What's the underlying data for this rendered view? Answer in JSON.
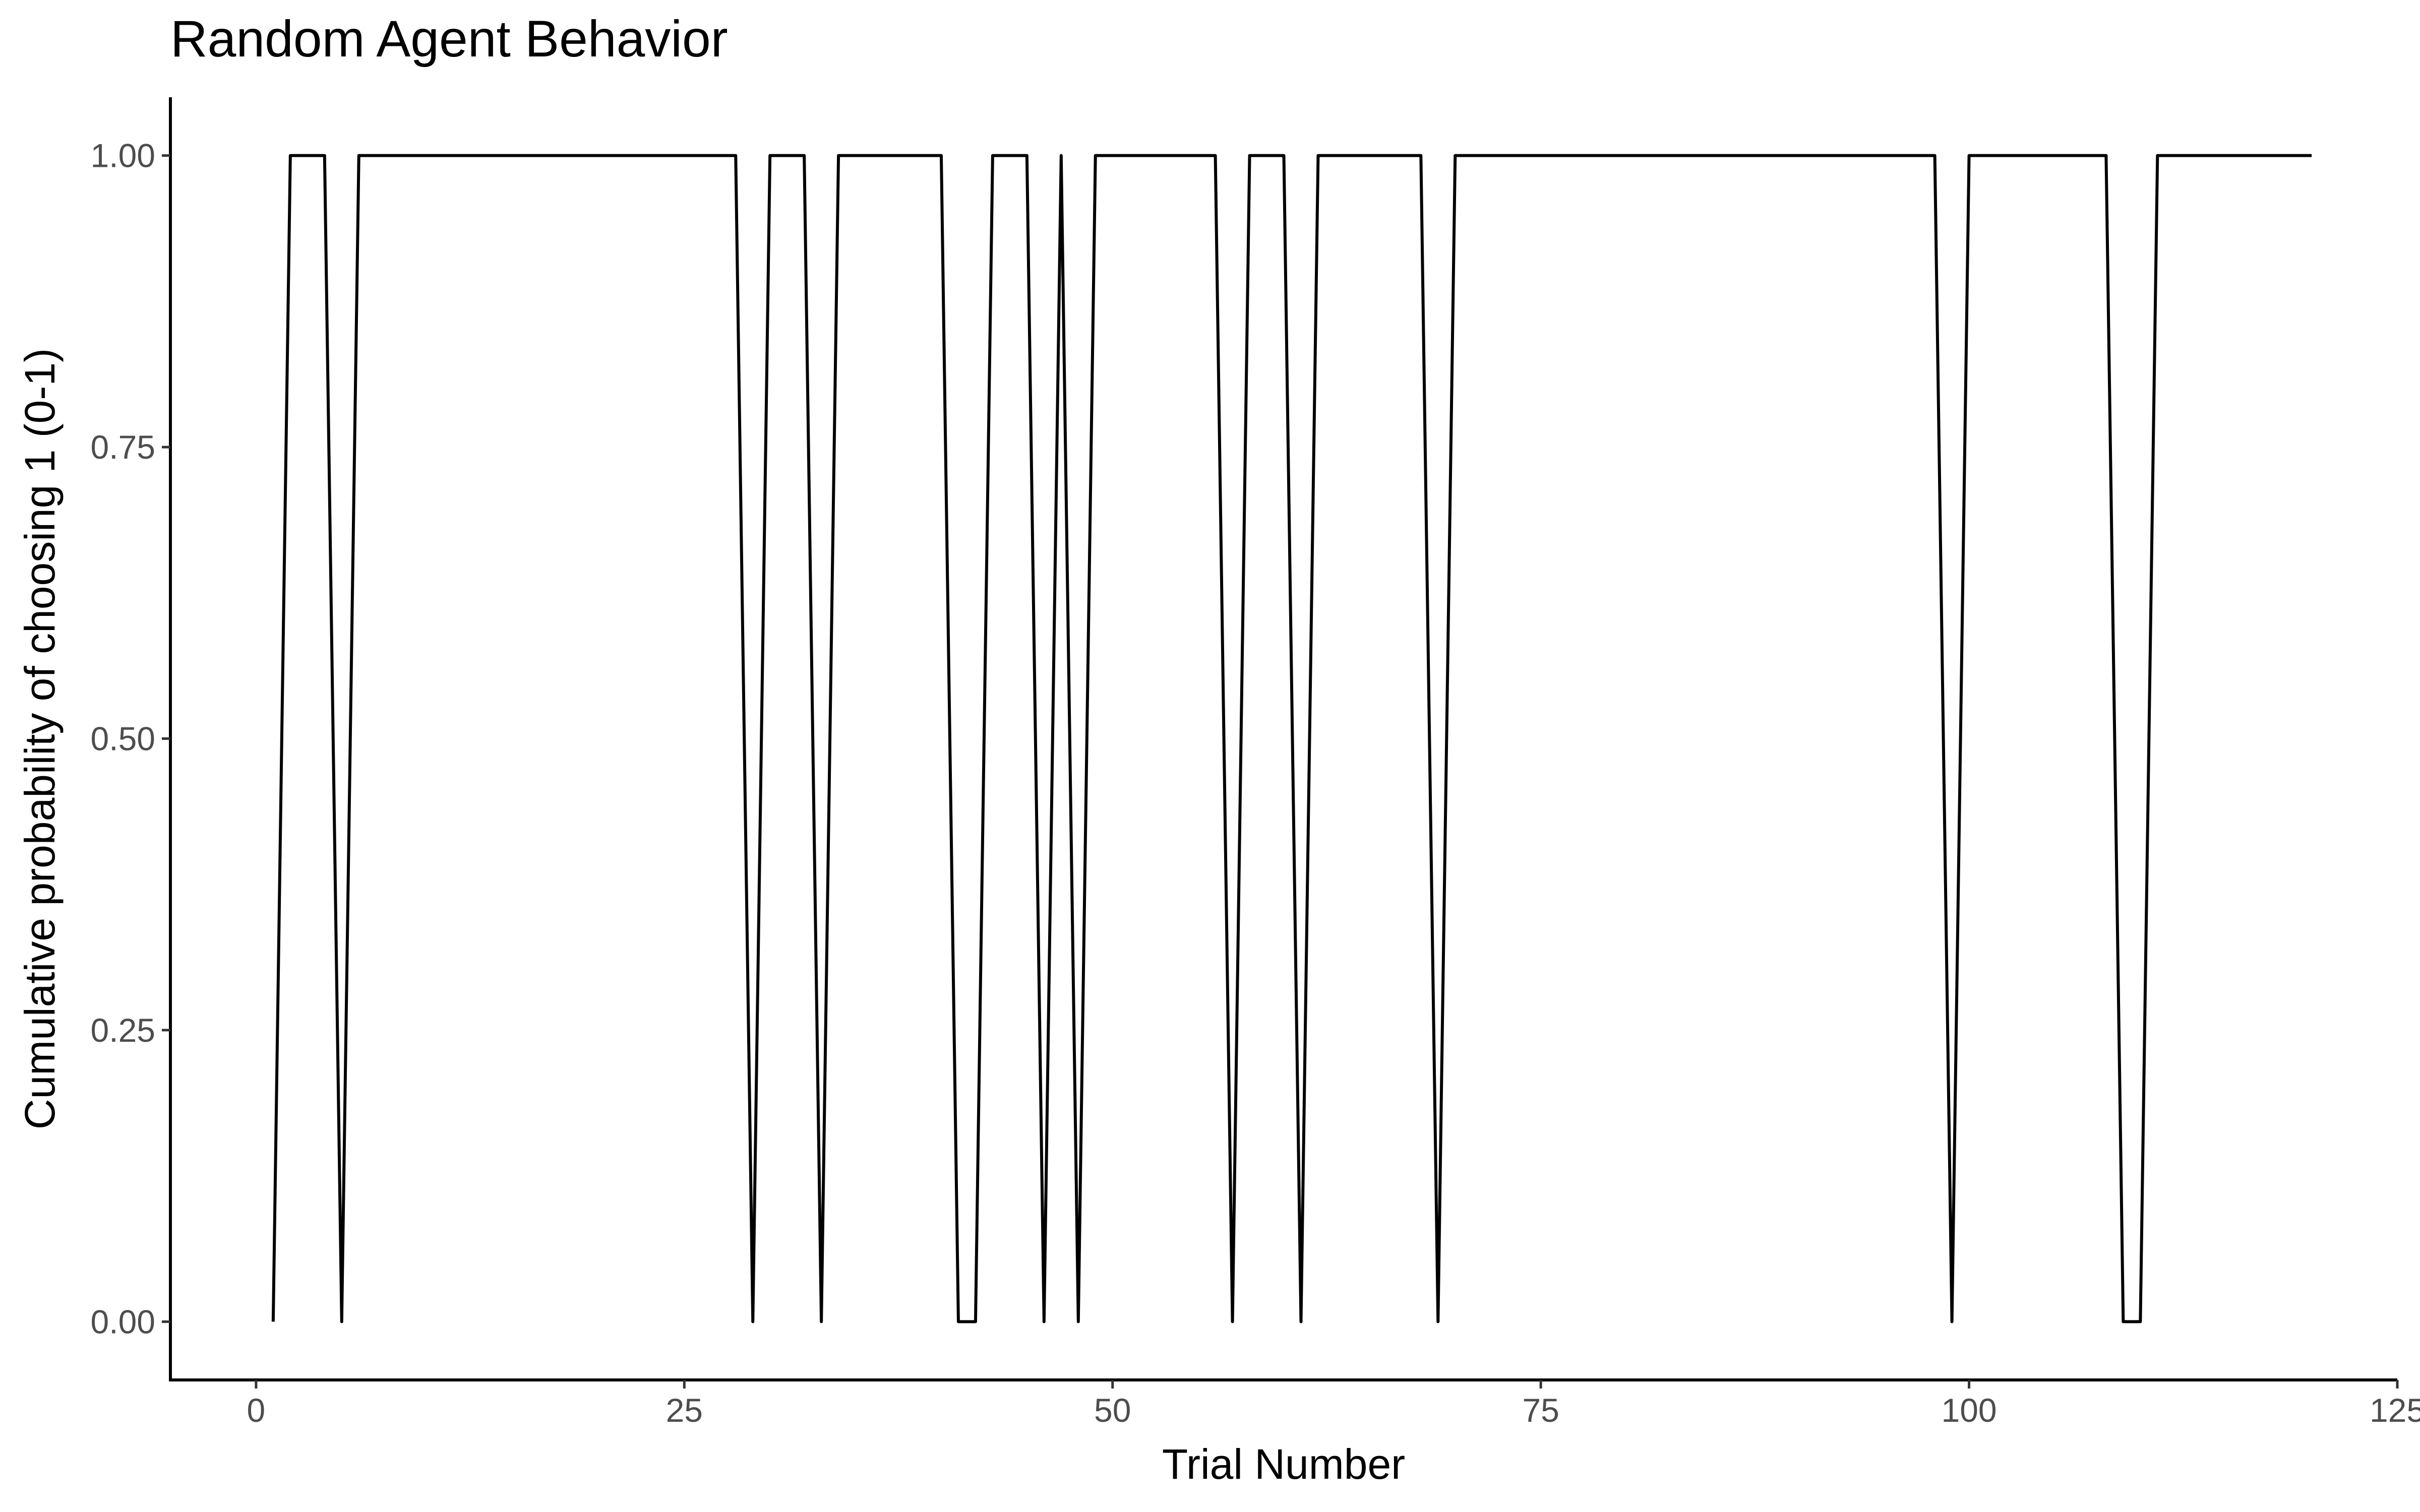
{
  "chart_data": {
    "type": "line",
    "title": "Random Agent Behavior",
    "xlabel": "Trial Number",
    "ylabel": "Cumulative probability of choosing 1 (0-1)",
    "xlim": [
      -5,
      125
    ],
    "ylim": [
      -0.05,
      1.05
    ],
    "x_ticks": [
      0,
      25,
      50,
      75,
      100,
      125
    ],
    "x_tick_labels": [
      "0",
      "25",
      "50",
      "75",
      "100",
      "125"
    ],
    "y_ticks": [
      0,
      0.25,
      0.5,
      0.75,
      1
    ],
    "y_tick_labels": [
      "0.00",
      "0.25",
      "0.50",
      "0.75",
      "1.00"
    ],
    "grid": false,
    "legend": "none",
    "line_color": "#000000",
    "series": [
      {
        "x": [
          1,
          2,
          3,
          4,
          5,
          6,
          7,
          8,
          9,
          10,
          11,
          12,
          13,
          14,
          15,
          16,
          17,
          18,
          19,
          20,
          21,
          22,
          23,
          24,
          25,
          26,
          27,
          28,
          29,
          30,
          31,
          32,
          33,
          34,
          35,
          36,
          37,
          38,
          39,
          40,
          41,
          42,
          43,
          44,
          45,
          46,
          47,
          48,
          49,
          50,
          51,
          52,
          53,
          54,
          55,
          56,
          57,
          58,
          59,
          60,
          61,
          62,
          63,
          64,
          65,
          66,
          67,
          68,
          69,
          70,
          71,
          72,
          73,
          74,
          75,
          76,
          77,
          78,
          79,
          80,
          81,
          82,
          83,
          84,
          85,
          86,
          87,
          88,
          89,
          90,
          91,
          92,
          93,
          94,
          95,
          96,
          97,
          98,
          99,
          100,
          101,
          102,
          103,
          104,
          105,
          106,
          107,
          108,
          109,
          110,
          111,
          112,
          113,
          114,
          115,
          116,
          117,
          118,
          119,
          120
        ],
        "y": [
          0,
          1,
          1,
          1,
          0,
          1,
          1,
          1,
          1,
          1,
          1,
          1,
          1,
          1,
          1,
          1,
          1,
          1,
          1,
          1,
          1,
          1,
          1,
          1,
          1,
          1,
          1,
          1,
          0,
          1,
          1,
          1,
          0,
          1,
          1,
          1,
          1,
          1,
          1,
          1,
          0,
          0,
          1,
          1,
          1,
          0,
          1,
          0,
          1,
          1,
          1,
          1,
          1,
          1,
          1,
          1,
          0,
          1,
          1,
          1,
          0,
          1,
          1,
          1,
          1,
          1,
          1,
          1,
          0,
          1,
          1,
          1,
          1,
          1,
          1,
          1,
          1,
          1,
          1,
          1,
          1,
          1,
          1,
          1,
          1,
          1,
          1,
          1,
          1,
          1,
          1,
          1,
          1,
          1,
          1,
          1,
          1,
          1,
          0,
          1,
          1,
          1,
          1,
          1,
          1,
          1,
          1,
          1,
          0,
          0,
          1,
          1,
          1,
          1,
          1,
          1,
          1,
          1,
          1,
          1
        ]
      }
    ]
  }
}
